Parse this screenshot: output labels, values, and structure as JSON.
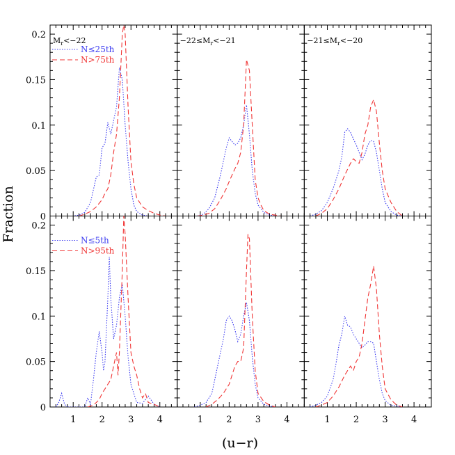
{
  "chart_data": {
    "type": "line",
    "xlabel": "(u−r)",
    "ylabel": "Fraction",
    "xlim": [
      0.2,
      4.6
    ],
    "ylim": [
      0,
      0.21
    ],
    "x_ticks": [
      "1",
      "2",
      "3",
      "4"
    ],
    "y_ticks": [
      "0",
      "0.05",
      "0.1",
      "0.15",
      "0.2"
    ],
    "colors": {
      "low": "#3b3bf0",
      "high": "#f03535"
    },
    "panels": [
      {
        "row": 0,
        "col": 0,
        "label_parts": [
          "M",
          "r",
          "<−22"
        ],
        "legend": [
          "N≤25th",
          "N>75th"
        ],
        "series": [
          {
            "name": "N≤25th",
            "color_key": "low",
            "x": [
              0.8,
              1.0,
              1.2,
              1.4,
              1.6,
              1.8,
              1.9,
              2.0,
              2.1,
              2.2,
              2.3,
              2.4,
              2.5,
              2.6,
              2.7,
              2.8,
              2.9,
              3.0,
              3.1,
              3.2,
              3.4,
              3.6,
              3.8,
              4.0
            ],
            "y": [
              0,
              0,
              0.001,
              0.004,
              0.015,
              0.043,
              0.045,
              0.075,
              0.08,
              0.103,
              0.09,
              0.105,
              0.12,
              0.163,
              0.15,
              0.1,
              0.06,
              0.03,
              0.012,
              0.005,
              0.001,
              0,
              0,
              0
            ]
          },
          {
            "name": "N>75th",
            "color_key": "high",
            "x": [
              1.2,
              1.4,
              1.6,
              1.8,
              2.0,
              2.1,
              2.2,
              2.3,
              2.4,
              2.5,
              2.6,
              2.7,
              2.75,
              2.8,
              2.9,
              3.0,
              3.1,
              3.2,
              3.4,
              3.6,
              3.8,
              4.0,
              4.2
            ],
            "y": [
              0,
              0.002,
              0.005,
              0.01,
              0.018,
              0.025,
              0.03,
              0.045,
              0.07,
              0.09,
              0.13,
              0.2,
              0.21,
              0.2,
              0.12,
              0.06,
              0.035,
              0.02,
              0.01,
              0.006,
              0.003,
              0.001,
              0
            ]
          }
        ]
      },
      {
        "row": 0,
        "col": 1,
        "label_parts": [
          "−22≤M",
          "r",
          "<−21"
        ],
        "legend": [],
        "series": [
          {
            "name": "N≤25th",
            "color_key": "low",
            "x": [
              0.9,
              1.1,
              1.3,
              1.5,
              1.7,
              1.9,
              2.0,
              2.1,
              2.2,
              2.3,
              2.4,
              2.5,
              2.6,
              2.7,
              2.8,
              2.9,
              3.0,
              3.2,
              3.4,
              3.6
            ],
            "y": [
              0,
              0.002,
              0.008,
              0.02,
              0.045,
              0.075,
              0.086,
              0.082,
              0.078,
              0.08,
              0.086,
              0.1,
              0.122,
              0.09,
              0.05,
              0.025,
              0.012,
              0.004,
              0.001,
              0
            ]
          },
          {
            "name": "N>75th",
            "color_key": "high",
            "x": [
              0.9,
              1.1,
              1.3,
              1.5,
              1.7,
              1.9,
              2.0,
              2.1,
              2.2,
              2.3,
              2.4,
              2.5,
              2.6,
              2.7,
              2.8,
              2.9,
              3.0,
              3.1,
              3.2,
              3.4,
              3.6,
              3.8
            ],
            "y": [
              0,
              0.001,
              0.003,
              0.008,
              0.018,
              0.03,
              0.038,
              0.045,
              0.052,
              0.058,
              0.07,
              0.1,
              0.172,
              0.16,
              0.1,
              0.04,
              0.02,
              0.012,
              0.006,
              0.002,
              0.001,
              0
            ]
          }
        ]
      },
      {
        "row": 0,
        "col": 2,
        "label_parts": [
          "−21≤M",
          "r",
          "<−20"
        ],
        "legend": [],
        "series": [
          {
            "name": "N≤25th",
            "color_key": "low",
            "x": [
              0.4,
              0.6,
              0.8,
              1.0,
              1.2,
              1.4,
              1.5,
              1.6,
              1.7,
              1.8,
              1.9,
              2.0,
              2.1,
              2.2,
              2.3,
              2.4,
              2.5,
              2.6,
              2.7,
              2.8,
              2.9,
              3.0,
              3.2,
              3.4,
              3.6
            ],
            "y": [
              0,
              0.002,
              0.006,
              0.015,
              0.03,
              0.05,
              0.065,
              0.092,
              0.096,
              0.092,
              0.085,
              0.078,
              0.07,
              0.062,
              0.068,
              0.078,
              0.083,
              0.082,
              0.07,
              0.05,
              0.03,
              0.015,
              0.005,
              0.001,
              0
            ]
          },
          {
            "name": "N>75th",
            "color_key": "high",
            "x": [
              0.6,
              0.8,
              1.0,
              1.2,
              1.4,
              1.6,
              1.8,
              1.9,
              2.0,
              2.1,
              2.2,
              2.3,
              2.4,
              2.5,
              2.6,
              2.7,
              2.8,
              2.9,
              3.0,
              3.2,
              3.4,
              3.6
            ],
            "y": [
              0,
              0.003,
              0.008,
              0.018,
              0.03,
              0.045,
              0.058,
              0.063,
              0.06,
              0.058,
              0.07,
              0.09,
              0.1,
              0.12,
              0.128,
              0.115,
              0.08,
              0.05,
              0.03,
              0.015,
              0.005,
              0
            ]
          }
        ]
      },
      {
        "row": 1,
        "col": 0,
        "label_parts": [],
        "legend": [
          "N≤5th",
          "N>95th"
        ],
        "series": [
          {
            "name": "N≤5th",
            "color_key": "low",
            "x": [
              0.4,
              0.5,
              0.6,
              0.7,
              0.8,
              1.0,
              1.2,
              1.4,
              1.5,
              1.6,
              1.7,
              1.8,
              1.9,
              2.0,
              2.05,
              2.1,
              2.2,
              2.25,
              2.3,
              2.4,
              2.5,
              2.6,
              2.7,
              2.8,
              2.9,
              3.0,
              3.2,
              3.4,
              3.6,
              3.8,
              4.0
            ],
            "y": [
              0,
              0.005,
              0.015,
              0.003,
              0,
              0,
              0,
              0,
              0.01,
              0.003,
              0.03,
              0.06,
              0.083,
              0.06,
              0.04,
              0.05,
              0.12,
              0.165,
              0.12,
              0.075,
              0.09,
              0.12,
              0.135,
              0.1,
              0.055,
              0.025,
              0.005,
              0.004,
              0.012,
              0.003,
              0
            ]
          },
          {
            "name": "N>95th",
            "color_key": "high",
            "x": [
              1.5,
              1.7,
              1.9,
              2.0,
              2.1,
              2.2,
              2.3,
              2.4,
              2.5,
              2.55,
              2.6,
              2.7,
              2.75,
              2.8,
              2.9,
              3.0,
              3.1,
              3.2,
              3.3,
              3.4,
              3.5,
              3.6,
              3.8,
              4.0
            ],
            "y": [
              0,
              0.002,
              0.008,
              0.015,
              0.02,
              0.025,
              0.03,
              0.045,
              0.06,
              0.035,
              0.06,
              0.15,
              0.21,
              0.19,
              0.12,
              0.06,
              0.045,
              0.035,
              0.02,
              0.01,
              0.015,
              0.005,
              0.003,
              0
            ]
          }
        ]
      },
      {
        "row": 1,
        "col": 1,
        "label_parts": [],
        "legend": [],
        "series": [
          {
            "name": "N≤5th",
            "color_key": "low",
            "x": [
              0.8,
              1.0,
              1.2,
              1.4,
              1.6,
              1.8,
              1.9,
              2.0,
              2.1,
              2.2,
              2.3,
              2.4,
              2.5,
              2.6,
              2.7,
              2.8,
              2.9,
              3.0,
              3.2,
              3.4,
              3.6
            ],
            "y": [
              0,
              0.002,
              0.005,
              0.015,
              0.045,
              0.075,
              0.095,
              0.1,
              0.095,
              0.085,
              0.072,
              0.08,
              0.1,
              0.115,
              0.095,
              0.055,
              0.025,
              0.01,
              0.003,
              0.001,
              0
            ]
          },
          {
            "name": "N>95th",
            "color_key": "high",
            "x": [
              1.2,
              1.4,
              1.6,
              1.8,
              2.0,
              2.1,
              2.2,
              2.3,
              2.4,
              2.5,
              2.6,
              2.65,
              2.7,
              2.8,
              2.9,
              3.0,
              3.2,
              3.4,
              3.6
            ],
            "y": [
              0,
              0.003,
              0.008,
              0.015,
              0.025,
              0.035,
              0.045,
              0.05,
              0.05,
              0.065,
              0.15,
              0.19,
              0.185,
              0.1,
              0.04,
              0.015,
              0.006,
              0.002,
              0
            ]
          }
        ]
      },
      {
        "row": 1,
        "col": 2,
        "label_parts": [],
        "legend": [],
        "series": [
          {
            "name": "N≤5th",
            "color_key": "low",
            "x": [
              0.4,
              0.6,
              0.8,
              1.0,
              1.2,
              1.3,
              1.4,
              1.5,
              1.6,
              1.7,
              1.8,
              1.9,
              2.0,
              2.1,
              2.2,
              2.3,
              2.4,
              2.5,
              2.6,
              2.7,
              2.8,
              2.9,
              3.0,
              3.2,
              3.4,
              3.6
            ],
            "y": [
              0,
              0.002,
              0.005,
              0.012,
              0.03,
              0.048,
              0.068,
              0.08,
              0.1,
              0.09,
              0.088,
              0.08,
              0.075,
              0.07,
              0.065,
              0.068,
              0.072,
              0.072,
              0.07,
              0.05,
              0.03,
              0.015,
              0.007,
              0.002,
              0.001,
              0
            ]
          },
          {
            "name": "N>95th",
            "color_key": "high",
            "x": [
              0.6,
              0.8,
              1.0,
              1.2,
              1.4,
              1.6,
              1.7,
              1.8,
              1.9,
              2.0,
              2.1,
              2.2,
              2.3,
              2.4,
              2.5,
              2.6,
              2.7,
              2.8,
              2.9,
              3.0,
              3.2,
              3.4,
              3.6
            ],
            "y": [
              0,
              0.002,
              0.005,
              0.012,
              0.022,
              0.035,
              0.04,
              0.045,
              0.04,
              0.05,
              0.055,
              0.07,
              0.095,
              0.12,
              0.135,
              0.155,
              0.13,
              0.08,
              0.045,
              0.02,
              0.008,
              0.002,
              0
            ]
          }
        ]
      }
    ]
  }
}
